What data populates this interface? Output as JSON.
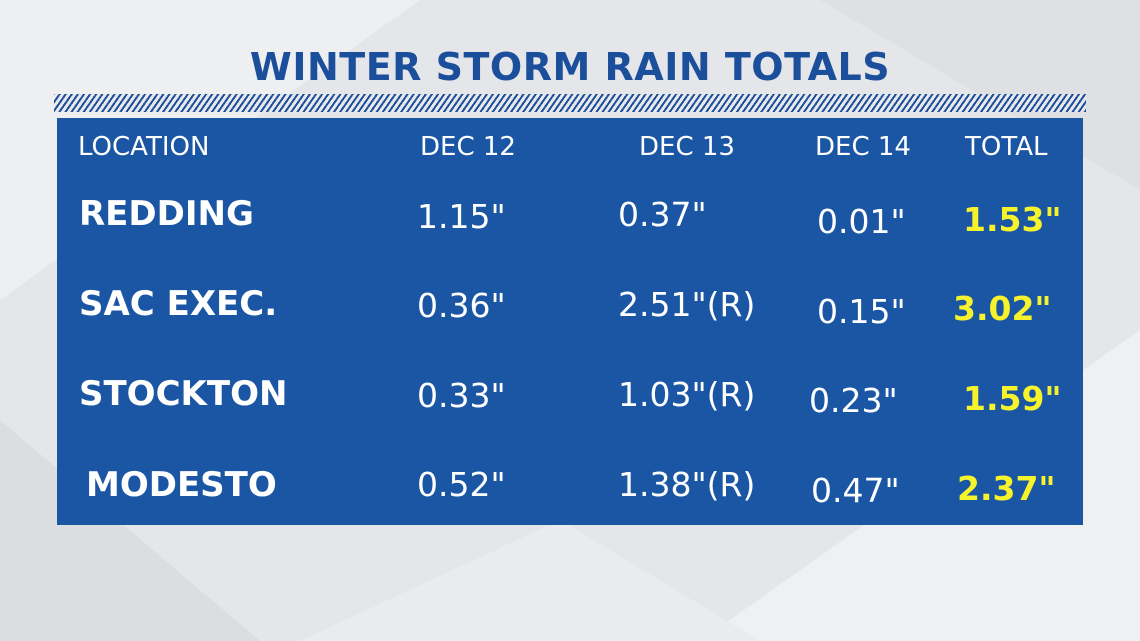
{
  "chart_data": {
    "type": "table",
    "title": "WINTER STORM RAIN TOTALS",
    "columns": [
      "LOCATION",
      "DEC 12",
      "DEC 13",
      "DEC 14",
      "TOTAL"
    ],
    "rows": [
      {
        "location": "REDDING",
        "dec12": "1.15\"",
        "dec13": "0.37\"",
        "dec14": "0.01\"",
        "total": "1.53\""
      },
      {
        "location": "SAC EXEC.",
        "dec12": "0.36\"",
        "dec13": "2.51\"(R)",
        "dec14": "0.15\"",
        "total": "3.02\""
      },
      {
        "location": "STOCKTON",
        "dec12": "0.33\"",
        "dec13": "1.03\"(R)",
        "dec14": "0.23\"",
        "total": "1.59\""
      },
      {
        "location": "MODESTO",
        "dec12": "0.52\"",
        "dec13": "1.38\"(R)",
        "dec14": "0.47\"",
        "total": "2.37\""
      }
    ]
  },
  "colors": {
    "title": "#1b4f9c",
    "table_background": "#1b56a5",
    "total_text": "#f6f22c",
    "text": "#ffffff"
  }
}
